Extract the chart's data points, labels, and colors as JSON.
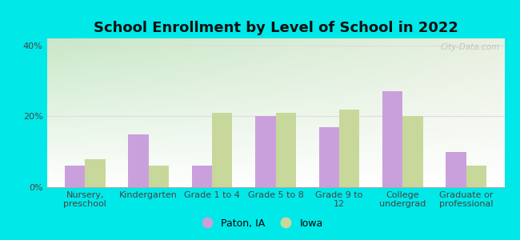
{
  "title": "School Enrollment by Level of School in 2022",
  "categories": [
    "Nursery,\npreschool",
    "Kindergarten",
    "Grade 1 to 4",
    "Grade 5 to 8",
    "Grade 9 to\n12",
    "College\nundergrad",
    "Graduate or\nprofessional"
  ],
  "paton_values": [
    6,
    15,
    6,
    20,
    17,
    27,
    10
  ],
  "iowa_values": [
    8,
    6,
    21,
    21,
    22,
    20,
    6
  ],
  "paton_color": "#c9a0dc",
  "iowa_color": "#c8d89a",
  "background_color": "#00e8e8",
  "plot_bg_top_left": "#c8e8c8",
  "plot_bg_bottom": "#ffffff",
  "ylabel_ticks": [
    "0%",
    "20%",
    "40%"
  ],
  "yticks": [
    0,
    20,
    40
  ],
  "ylim": [
    0,
    42
  ],
  "bar_width": 0.32,
  "legend_paton": "Paton, IA",
  "legend_iowa": "Iowa",
  "watermark": "City-Data.com",
  "title_fontsize": 13,
  "tick_fontsize": 8,
  "legend_fontsize": 9,
  "grid_color": "#dddddd"
}
